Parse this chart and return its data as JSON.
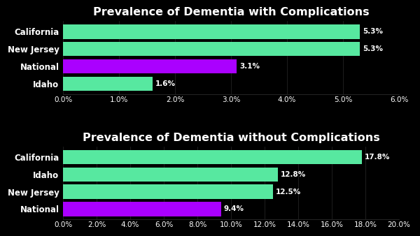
{
  "chart1": {
    "title": "Prevalence of Dementia with Complications",
    "categories": [
      "California",
      "New Jersey",
      "National",
      "Idaho"
    ],
    "values": [
      5.3,
      5.3,
      3.1,
      1.6
    ],
    "colors": [
      "#57e8a0",
      "#57e8a0",
      "#aa00ff",
      "#57e8a0"
    ],
    "xlim": [
      0,
      6.0
    ],
    "xticks": [
      0,
      1.0,
      2.0,
      3.0,
      4.0,
      5.0,
      6.0
    ],
    "xtick_labels": [
      "0.0%",
      "1.0%",
      "2.0%",
      "3.0%",
      "4.0%",
      "5.0%",
      "6.0%"
    ]
  },
  "chart2": {
    "title": "Prevalence of Dementia without Complications",
    "categories": [
      "California",
      "Idaho",
      "New Jersey",
      "National"
    ],
    "values": [
      17.8,
      12.8,
      12.5,
      9.4
    ],
    "colors": [
      "#57e8a0",
      "#57e8a0",
      "#57e8a0",
      "#aa00ff"
    ],
    "xlim": [
      0,
      20.0
    ],
    "xticks": [
      0,
      2.0,
      4.0,
      6.0,
      8.0,
      10.0,
      12.0,
      14.0,
      16.0,
      18.0,
      20.0
    ],
    "xtick_labels": [
      "0.0%",
      "2.0%",
      "4.0%",
      "6.0%",
      "8.0%",
      "10.0%",
      "12.0%",
      "14.0%",
      "16.0%",
      "18.0%",
      "20.0%"
    ]
  },
  "bg_color": "#000000",
  "text_color": "#ffffff",
  "bar_height": 0.82,
  "title_fontsize": 11.5,
  "tick_fontsize": 7.5,
  "label_fontsize": 8.5,
  "value_fontsize": 7.5
}
